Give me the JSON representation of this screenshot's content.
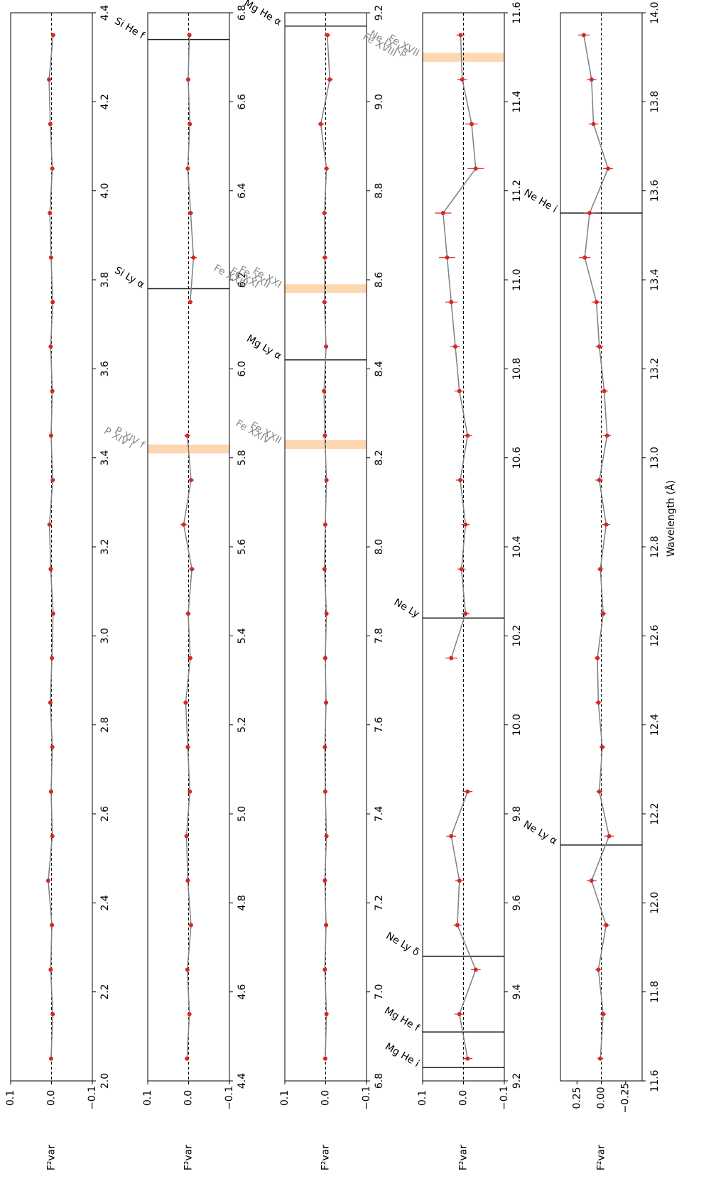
{
  "chart_data": [
    {
      "type": "scatter",
      "ylabel": "F²var",
      "color": "#d62728",
      "line_color": "#7f7f7f",
      "xlim": [
        2.0,
        4.4
      ],
      "xticks": [
        {
          "value": 2,
          "label": "2.0"
        },
        2.2,
        2.4,
        2.6,
        2.8,
        {
          "value": 3,
          "label": "3.0"
        },
        3.2,
        3.4,
        3.6,
        3.8,
        {
          "value": 4,
          "label": "4.0"
        },
        4.2,
        4.4
      ],
      "ylim": [
        -0.1,
        0.1
      ],
      "yticks": [
        {
          "value": -0.1,
          "label": "−0.1"
        },
        {
          "value": 0,
          "label": "0.0"
        },
        0.1
      ],
      "x": [
        2.05,
        2.15,
        2.25,
        2.35,
        2.45,
        2.55,
        2.65,
        2.75,
        2.85,
        2.95,
        3.05,
        3.15,
        3.25,
        3.35,
        3.45,
        3.55,
        3.65,
        3.75,
        3.85,
        3.95,
        4.05,
        4.15,
        4.25,
        4.35
      ],
      "values": [
        0.001,
        -0.003,
        0.002,
        -0.001,
        0.008,
        -0.002,
        0.001,
        -0.002,
        0.003,
        -0.001,
        -0.004,
        0.002,
        0.005,
        -0.003,
        0.001,
        -0.002,
        0.002,
        -0.003,
        0.001,
        0.004,
        -0.002,
        0.003,
        0.006,
        -0.004
      ],
      "errors": [
        0.004,
        0.004,
        0.004,
        0.004,
        0.004,
        0.004,
        0.004,
        0.004,
        0.004,
        0.004,
        0.004,
        0.004,
        0.004,
        0.004,
        0.004,
        0.004,
        0.004,
        0.004,
        0.004,
        0.004,
        0.004,
        0.004,
        0.004,
        0.004
      ],
      "lines": [],
      "bands": []
    },
    {
      "type": "scatter",
      "ylabel": "F²var",
      "color": "#d62728",
      "line_color": "#7f7f7f",
      "xlim": [
        4.4,
        6.8
      ],
      "xticks": [
        4.4,
        4.6,
        4.8,
        {
          "value": 5,
          "label": "5.0"
        },
        5.2,
        5.4,
        5.6,
        5.8,
        {
          "value": 6,
          "label": "6.0"
        },
        6.2,
        6.4,
        6.6,
        6.8
      ],
      "ylim": [
        -0.1,
        0.1
      ],
      "yticks": [
        {
          "value": -0.1,
          "label": "−0.1"
        },
        {
          "value": 0,
          "label": "0.0"
        },
        0.1
      ],
      "x": [
        4.45,
        4.55,
        4.65,
        4.75,
        4.85,
        4.95,
        5.05,
        5.15,
        5.25,
        5.35,
        5.45,
        5.55,
        5.65,
        5.75,
        5.85,
        5.95,
        6.05,
        6.15,
        6.25,
        6.35,
        6.45,
        6.55,
        6.65,
        6.75
      ],
      "values": [
        0.004,
        -0.002,
        0.003,
        -0.006,
        0.002,
        0.005,
        -0.003,
        0.002,
        0.007,
        -0.004,
        0.001,
        -0.008,
        0.012,
        -0.006,
        0.003,
        null,
        null,
        -0.004,
        -0.012,
        -0.005,
        0.002,
        -0.003,
        0.001,
        -0.002
      ],
      "errors": [
        0.005,
        0.005,
        0.005,
        0.005,
        0.005,
        0.005,
        0.005,
        0.005,
        0.006,
        0.006,
        0.006,
        0.007,
        0.008,
        0.007,
        0.007,
        null,
        null,
        0.006,
        0.008,
        0.006,
        0.005,
        0.005,
        0.005,
        0.005
      ],
      "lines": [
        {
          "x": 6.74,
          "label": "Si He f"
        },
        {
          "x": 6.18,
          "label": "Si Ly α"
        }
      ],
      "bands": [
        {
          "x": [
            5.81,
            5.83
          ],
          "labels": [
            "P XIV i",
            "P XIV f"
          ]
        }
      ]
    },
    {
      "type": "scatter",
      "ylabel": "F²var",
      "color": "#d62728",
      "line_color": "#7f7f7f",
      "xlim": [
        6.8,
        9.2
      ],
      "xticks": [
        6.8,
        {
          "value": 7,
          "label": "7.0"
        },
        7.2,
        7.4,
        7.6,
        7.8,
        {
          "value": 8,
          "label": "8.0"
        },
        8.2,
        8.4,
        8.6,
        8.8,
        {
          "value": 9,
          "label": "9.0"
        },
        9.2
      ],
      "ylim": [
        -0.1,
        0.1
      ],
      "yticks": [
        {
          "value": -0.1,
          "label": "−0.1"
        },
        {
          "value": 0,
          "label": "0.0"
        },
        0.1
      ],
      "x": [
        6.85,
        6.95,
        7.05,
        7.15,
        7.25,
        7.35,
        7.45,
        7.55,
        7.65,
        7.75,
        7.85,
        7.95,
        8.05,
        8.15,
        8.25,
        8.35,
        8.45,
        8.55,
        8.65,
        8.75,
        8.85,
        8.95,
        9.05,
        9.15
      ],
      "values": [
        0.001,
        -0.002,
        0.002,
        -0.001,
        0.002,
        -0.002,
        0.001,
        0.002,
        -0.001,
        0.001,
        -0.002,
        0.003,
        0.001,
        -0.002,
        0.002,
        0.004,
        -0.001,
        0.003,
        0.002,
        0.003,
        -0.002,
        0.012,
        -0.01,
        -0.004
      ],
      "errors": [
        0.005,
        0.005,
        0.005,
        0.005,
        0.005,
        0.005,
        0.005,
        0.005,
        0.005,
        0.005,
        0.005,
        0.005,
        0.005,
        0.005,
        0.005,
        0.005,
        0.005,
        0.006,
        0.006,
        0.006,
        0.006,
        0.008,
        0.008,
        0.008
      ],
      "lines": [
        {
          "x": 9.17,
          "label": "Mg He α"
        },
        {
          "x": 8.42,
          "label": "Mg Ly α"
        }
      ],
      "bands": [
        {
          "x": [
            8.22,
            8.24
          ],
          "labels": [
            "Fe XXIV",
            "Fe XXII"
          ]
        },
        {
          "x": [
            8.57,
            8.59
          ],
          "labels": [
            "Fe XXIII",
            "Fe XXI",
            "Fe XXII",
            "Fe XXI"
          ]
        }
      ]
    },
    {
      "type": "scatter",
      "ylabel": "F²var",
      "color": "#d62728",
      "line_color": "#7f7f7f",
      "xlim": [
        9.2,
        11.6
      ],
      "xticks": [
        9.2,
        9.4,
        9.6,
        9.8,
        {
          "value": 10,
          "label": "10.0"
        },
        10.2,
        10.4,
        10.6,
        10.8,
        {
          "value": 11,
          "label": "11.0"
        },
        11.2,
        11.4,
        11.6
      ],
      "ylim": [
        -0.1,
        0.1
      ],
      "yticks": [
        {
          "value": -0.1,
          "label": "−0.1"
        },
        {
          "value": 0,
          "label": "0.0"
        },
        0.1
      ],
      "x": [
        9.25,
        9.35,
        9.45,
        9.55,
        9.65,
        9.75,
        9.85,
        9.95,
        10.05,
        10.15,
        10.25,
        10.35,
        10.45,
        10.55,
        10.65,
        10.75,
        10.85,
        10.95,
        11.05,
        11.15,
        11.25,
        11.35,
        11.45,
        11.55
      ],
      "values": [
        -0.01,
        0.01,
        -0.03,
        0.015,
        0.01,
        0.03,
        -0.01,
        null,
        null,
        0.03,
        -0.005,
        0.005,
        -0.005,
        0.008,
        -0.01,
        0.01,
        0.02,
        0.03,
        0.04,
        0.05,
        -0.03,
        -0.02,
        0.003,
        0.007
      ],
      "errors": [
        0.012,
        0.012,
        0.012,
        0.01,
        0.01,
        0.012,
        0.012,
        null,
        null,
        0.015,
        0.01,
        0.01,
        0.01,
        0.01,
        0.01,
        0.012,
        0.012,
        0.015,
        0.02,
        0.02,
        0.02,
        0.015,
        0.012,
        0.01
      ],
      "lines": [
        {
          "x": 9.23,
          "label": "Mg He i"
        },
        {
          "x": 9.31,
          "label": "Mg He f"
        },
        {
          "x": 9.48,
          "label": "Ne Ly δ"
        },
        {
          "x": 10.24,
          "label": "Ne Ly"
        }
      ],
      "bands": [
        {
          "x": [
            11.49,
            11.51
          ],
          "labels": [
            "Fe XVIII",
            "Ne IX Kβ",
            "Fe XVII"
          ]
        }
      ]
    },
    {
      "type": "scatter",
      "ylabel": "F²var",
      "xlabel": "Wavelength (Å)",
      "color": "#d62728",
      "line_color": "#7f7f7f",
      "xlim": [
        11.6,
        14.0
      ],
      "xticks": [
        11.6,
        11.8,
        {
          "value": 12,
          "label": "12.0"
        },
        12.2,
        12.4,
        12.6,
        12.8,
        {
          "value": 13,
          "label": "13.0"
        },
        13.2,
        13.4,
        13.6,
        13.8,
        {
          "value": 14,
          "label": "14.0"
        }
      ],
      "ylim": [
        -0.42,
        0.42
      ],
      "yticks": [
        {
          "value": -0.25,
          "label": "−0.25"
        },
        {
          "value": 0,
          "label": "0.00"
        },
        0.25
      ],
      "x": [
        11.65,
        11.75,
        11.85,
        11.95,
        12.05,
        12.15,
        12.25,
        12.35,
        12.45,
        12.55,
        12.65,
        12.75,
        12.85,
        12.95,
        13.05,
        13.15,
        13.25,
        13.35,
        13.45,
        13.55,
        13.65,
        13.75,
        13.85,
        13.95
      ],
      "values": [
        0.01,
        -0.02,
        0.03,
        -0.05,
        0.1,
        -0.08,
        0.02,
        -0.01,
        0.03,
        0.04,
        -0.02,
        0.01,
        -0.05,
        0.02,
        -0.06,
        -0.03,
        0.02,
        0.05,
        0.17,
        0.12,
        -0.07,
        0.08,
        0.1,
        0.18
      ],
      "errors": [
        0.03,
        0.03,
        0.03,
        0.04,
        0.05,
        0.05,
        0.03,
        0.03,
        0.03,
        0.03,
        0.03,
        0.03,
        0.04,
        0.04,
        0.04,
        0.04,
        0.04,
        0.05,
        0.06,
        0.06,
        0.05,
        0.05,
        0.05,
        0.06
      ],
      "lines": [
        {
          "x": 12.13,
          "label": "Ne Ly α"
        },
        {
          "x": 13.55,
          "label": "Ne He i"
        }
      ],
      "bands": []
    }
  ]
}
